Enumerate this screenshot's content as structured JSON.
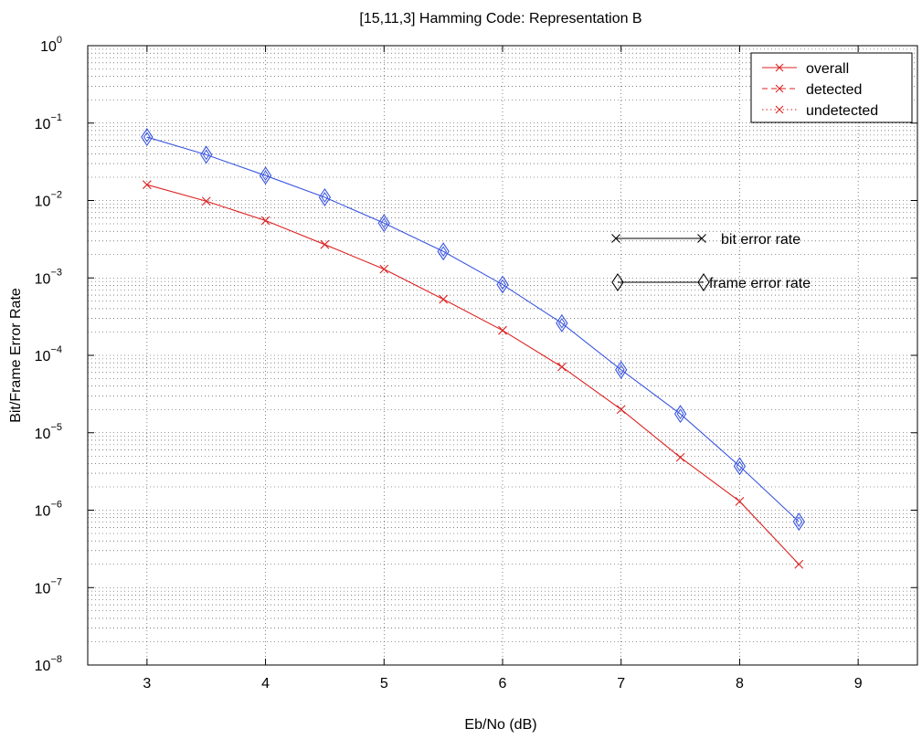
{
  "chart_data": {
    "type": "line",
    "title": "[15,11,3] Hamming Code: Representation B",
    "xlabel": "Eb/No (dB)",
    "ylabel": "Bit/Frame Error Rate",
    "xlim": [
      2.5,
      9.5
    ],
    "ylim": [
      1e-08,
      1
    ],
    "yscale": "log",
    "grid": true,
    "x_ticks": [
      3,
      4,
      5,
      6,
      7,
      8,
      9
    ],
    "x_tick_labels": [
      "3",
      "4",
      "5",
      "6",
      "7",
      "8",
      "9"
    ],
    "y_tick_exponents": [
      0,
      -1,
      -2,
      -3,
      -4,
      -5,
      -6,
      -7,
      -8
    ],
    "y_tick_base": "10",
    "series": [
      {
        "color": "#dd2222",
        "marker": "x",
        "x": [
          3,
          3.5,
          4,
          4.5,
          5,
          5.5,
          6,
          6.5,
          7,
          7.5,
          8,
          8.5
        ],
        "values": [
          0.016,
          0.0098,
          0.0055,
          0.0027,
          0.0013,
          0.00053,
          0.00021,
          7.1e-05,
          2e-05,
          4.8e-06,
          1.3e-06,
          2e-07
        ]
      },
      {
        "color": "#3a56e0",
        "marker": "diamond",
        "x": [
          3,
          3.5,
          4,
          4.5,
          5,
          5.5,
          6,
          6.5,
          7,
          7.5,
          8,
          8.5
        ],
        "values": [
          0.066,
          0.039,
          0.021,
          0.011,
          0.0051,
          0.0022,
          0.00082,
          0.00026,
          6.5e-05,
          1.75e-05,
          3.7e-06,
          7.1e-07
        ]
      }
    ],
    "legend": {
      "placement": "top-right",
      "entries": [
        {
          "label": "overall",
          "style": "solid",
          "color": "#dd2222"
        },
        {
          "label": "detected",
          "style": "dashed",
          "color": "#dd2222"
        },
        {
          "label": "undetected",
          "style": "dotted",
          "color": "#dd2222"
        }
      ]
    },
    "annotations": [
      {
        "label": "bit error rate",
        "marker": "x",
        "color": "#000000"
      },
      {
        "label": "frame error rate",
        "marker": "diamond",
        "color": "#000000"
      }
    ]
  }
}
